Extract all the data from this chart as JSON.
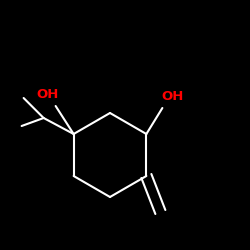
{
  "background_color": "#000000",
  "bond_color": "#ffffff",
  "oh_color": "#ff0000",
  "line_width": 1.5,
  "figsize": [
    2.5,
    2.5
  ],
  "dpi": 100,
  "oh_fontsize": 9.5,
  "oh_font": "DejaVu Sans"
}
